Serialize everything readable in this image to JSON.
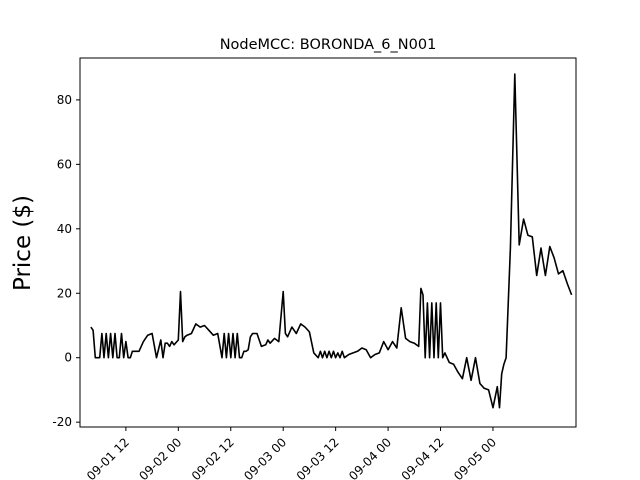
{
  "chart_data": {
    "type": "line",
    "title": "NodeMCC: BORONDA_6_N001",
    "xlabel": "",
    "ylabel": "Price ($)",
    "ylim": [
      -21.5,
      93
    ],
    "xlim": [
      "09-01 01:30",
      "09-05 19:00"
    ],
    "grid": false,
    "line_color": "#000000",
    "x_ticks": [
      "09-01 12",
      "09-02 00",
      "09-02 12",
      "09-03 00",
      "09-03 12",
      "09-04 00",
      "09-04 12",
      "09-05 00"
    ],
    "y_ticks": [
      -20,
      0,
      20,
      40,
      60,
      80
    ],
    "series": [
      {
        "name": "",
        "x": [
          "09-01 04:00",
          "09-01 04:30",
          "09-01 05:00",
          "09-01 05:30",
          "09-01 06:00",
          "09-01 06:30",
          "09-01 07:00",
          "09-01 07:30",
          "09-01 08:00",
          "09-01 08:30",
          "09-01 09:00",
          "09-01 09:30",
          "09-01 10:00",
          "09-01 10:30",
          "09-01 11:00",
          "09-01 11:30",
          "09-01 12:00",
          "09-01 12:30",
          "09-01 13:00",
          "09-01 13:30",
          "09-01 14:00",
          "09-01 14:30",
          "09-01 15:00",
          "09-01 16:00",
          "09-01 17:00",
          "09-01 18:00",
          "09-01 19:00",
          "09-01 20:00",
          "09-01 20:30",
          "09-01 21:00",
          "09-01 21:30",
          "09-01 22:00",
          "09-01 22:30",
          "09-01 23:00",
          "09-02 00:00",
          "09-02 00:30",
          "09-02 01:00",
          "09-02 01:30",
          "09-02 02:00",
          "09-02 03:00",
          "09-02 04:00",
          "09-02 05:00",
          "09-02 06:00",
          "09-02 07:00",
          "09-02 08:00",
          "09-02 09:00",
          "09-02 10:00",
          "09-02 10:30",
          "09-02 11:00",
          "09-02 11:30",
          "09-02 12:00",
          "09-02 12:30",
          "09-02 13:00",
          "09-02 13:30",
          "09-02 14:00",
          "09-02 14:30",
          "09-02 15:00",
          "09-02 15:30",
          "09-02 16:00",
          "09-02 16:30",
          "09-02 17:00",
          "09-02 18:00",
          "09-02 19:00",
          "09-02 20:00",
          "09-02 20:30",
          "09-02 21:00",
          "09-02 22:00",
          "09-02 23:00",
          "09-03 00:00",
          "09-03 00:30",
          "09-03 01:00",
          "09-03 02:00",
          "09-03 03:00",
          "09-03 04:00",
          "09-03 05:00",
          "09-03 06:00",
          "09-03 07:00",
          "09-03 08:00",
          "09-03 08:30",
          "09-03 09:00",
          "09-03 09:30",
          "09-03 10:00",
          "09-03 10:30",
          "09-03 11:00",
          "09-03 11:30",
          "09-03 12:00",
          "09-03 12:30",
          "09-03 13:00",
          "09-03 13:30",
          "09-03 14:00",
          "09-03 15:00",
          "09-03 16:00",
          "09-03 17:00",
          "09-03 18:00",
          "09-03 19:00",
          "09-03 20:00",
          "09-03 21:00",
          "09-03 22:00",
          "09-03 23:00",
          "09-04 00:00",
          "09-04 01:00",
          "09-04 02:00",
          "09-04 03:00",
          "09-04 04:00",
          "09-04 05:00",
          "09-04 06:00",
          "09-04 07:00",
          "09-04 07:30",
          "09-04 08:00",
          "09-04 08:30",
          "09-04 09:00",
          "09-04 09:30",
          "09-04 10:00",
          "09-04 10:30",
          "09-04 11:00",
          "09-04 11:30",
          "09-04 12:00",
          "09-04 12:30",
          "09-04 13:00",
          "09-04 14:00",
          "09-04 15:00",
          "09-04 16:00",
          "09-04 17:00",
          "09-04 18:00",
          "09-04 19:00",
          "09-04 20:00",
          "09-04 21:00",
          "09-04 22:00",
          "09-04 23:00",
          "09-05 00:00",
          "09-05 01:00",
          "09-05 01:30",
          "09-05 02:00",
          "09-05 02:30",
          "09-05 03:00",
          "09-05 04:00",
          "09-05 05:00",
          "09-05 06:00",
          "09-05 07:00",
          "09-05 08:00",
          "09-05 09:00",
          "09-05 10:00",
          "09-05 11:00",
          "09-05 12:00",
          "09-05 13:00",
          "09-05 14:00",
          "09-05 15:00",
          "09-05 16:00",
          "09-05 17:00",
          "09-05 18:00"
        ],
        "y": [
          9.5,
          8.5,
          0.0,
          0.0,
          0.0,
          7.5,
          0.0,
          7.5,
          0.0,
          7.5,
          0.0,
          7.5,
          0.0,
          0.0,
          7.5,
          0.0,
          5.0,
          0.0,
          0.0,
          2.0,
          2.0,
          2.0,
          2.0,
          5.0,
          7.0,
          7.5,
          0.0,
          5.5,
          0.0,
          4.5,
          4.5,
          3.5,
          5.0,
          4.0,
          5.5,
          20.5,
          5.0,
          6.5,
          7.0,
          7.5,
          10.5,
          9.5,
          10.0,
          8.5,
          7.0,
          7.5,
          0.0,
          7.5,
          0.0,
          7.5,
          0.0,
          7.5,
          0.0,
          7.5,
          0.0,
          0.0,
          2.0,
          2.0,
          2.5,
          6.5,
          7.5,
          7.5,
          3.5,
          4.0,
          5.5,
          4.5,
          6.0,
          5.0,
          20.5,
          7.5,
          6.5,
          9.5,
          7.5,
          10.5,
          9.5,
          8.0,
          1.5,
          0.0,
          2.0,
          0.0,
          2.0,
          0.0,
          2.0,
          0.0,
          2.0,
          0.0,
          1.5,
          0.0,
          2.0,
          0.0,
          1.0,
          1.5,
          2.0,
          3.0,
          2.5,
          0.0,
          1.0,
          1.5,
          5.0,
          2.5,
          5.0,
          3.0,
          15.5,
          6.0,
          5.0,
          4.5,
          3.5,
          21.5,
          19.5,
          0.0,
          17.0,
          0.0,
          17.0,
          0.0,
          17.0,
          0.0,
          17.0,
          0.0,
          1.5,
          -1.5,
          -2.0,
          -4.5,
          -6.5,
          0.0,
          -7.0,
          0.0,
          -8.0,
          -9.5,
          -10.0,
          -15.5,
          -9.0,
          -15.5,
          -5.0,
          -2.0,
          0.0,
          34.0,
          88.0,
          35.0,
          43.0,
          38.0,
          37.5,
          25.5,
          34.0,
          25.5,
          34.5,
          31.0,
          26.0,
          27.0,
          23.0,
          19.5
        ]
      }
    ]
  }
}
